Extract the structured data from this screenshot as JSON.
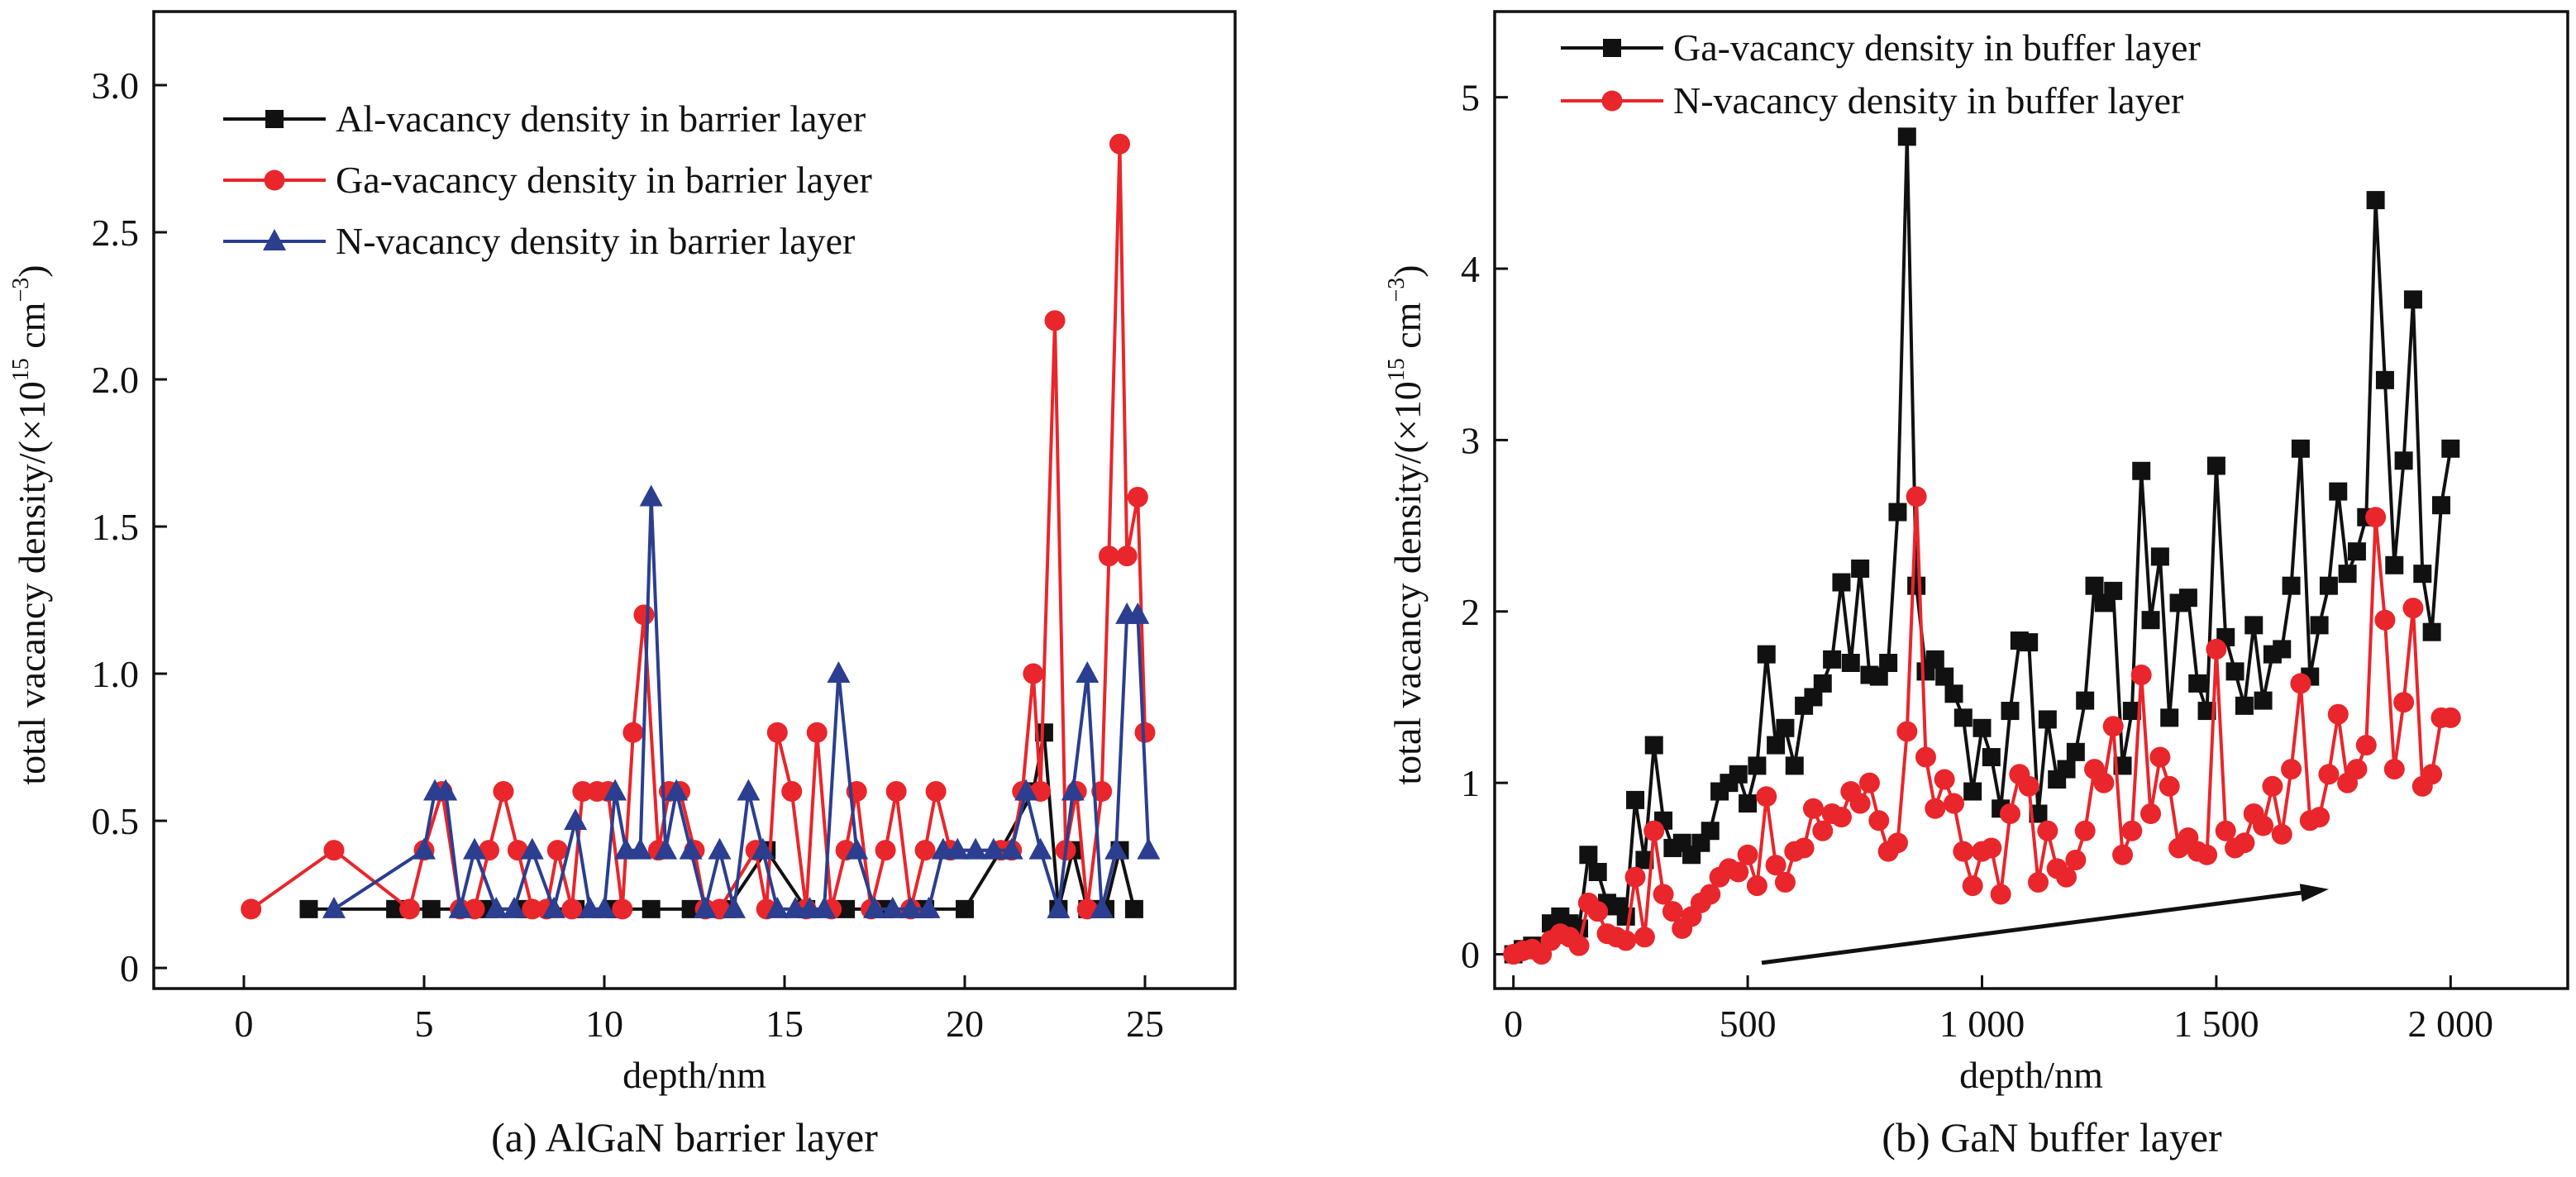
{
  "chart_data": [
    {
      "type": "line",
      "caption": "(a) AlGaN barrier layer",
      "xlabel": "depth/nm",
      "ylabel": "total vacancy density/(×10",
      "ylabel_exp": "15",
      "ylabel_unit": " cm",
      "ylabel_unit_exp": "−3",
      "ylabel_close": ")",
      "xlim": [
        -2.5,
        27.5
      ],
      "ylim": [
        -0.07,
        3.25
      ],
      "xticks": [
        0,
        5,
        10,
        15,
        20,
        25
      ],
      "xtick_labels": [
        "0",
        "5",
        "10",
        "15",
        "20",
        "25"
      ],
      "yticks": [
        0,
        0.5,
        1.0,
        1.5,
        2.0,
        2.5,
        3.0
      ],
      "ytick_labels": [
        "0",
        "0.5",
        "1.0",
        "1.5",
        "2.0",
        "2.5",
        "3.0"
      ],
      "legend_position": "top-left",
      "series": [
        {
          "name": "Al-vacancy density in barrier layer",
          "color": "#111111",
          "marker": "square",
          "x": [
            1.8,
            4.2,
            5.2,
            6.8,
            7.8,
            9.2,
            10.3,
            11.3,
            12.4,
            13.4,
            14.5,
            15.6,
            16.7,
            17.8,
            18.9,
            20.0,
            21.0,
            21.9,
            22.2,
            22.6,
            23.0,
            23.4,
            23.9,
            24.3,
            24.7
          ],
          "y": [
            0.2,
            0.2,
            0.2,
            0.2,
            0.2,
            0.2,
            0.2,
            0.2,
            0.2,
            0.2,
            0.4,
            0.2,
            0.2,
            0.2,
            0.2,
            0.2,
            0.4,
            0.6,
            0.8,
            0.2,
            0.4,
            0.2,
            0.2,
            0.4,
            0.2
          ]
        },
        {
          "name": "Ga-vacancy density in barrier layer",
          "color": "#e8262b",
          "marker": "circle",
          "x": [
            0.2,
            2.5,
            4.6,
            5.0,
            5.5,
            6.0,
            6.4,
            6.8,
            7.2,
            7.6,
            8.0,
            8.4,
            8.7,
            9.1,
            9.4,
            9.8,
            10.1,
            10.5,
            10.8,
            11.1,
            11.5,
            11.8,
            12.1,
            12.5,
            12.8,
            13.2,
            14.2,
            14.5,
            14.8,
            15.2,
            15.6,
            15.9,
            16.3,
            16.7,
            17.0,
            17.4,
            17.8,
            18.1,
            18.5,
            18.9,
            19.2,
            19.6,
            21.0,
            21.3,
            21.6,
            21.9,
            22.1,
            22.5,
            22.8,
            23.1,
            23.4,
            23.8,
            24.0,
            24.3,
            24.5,
            24.8,
            25.0
          ],
          "y": [
            0.2,
            0.4,
            0.2,
            0.4,
            0.6,
            0.2,
            0.2,
            0.4,
            0.6,
            0.4,
            0.2,
            0.2,
            0.4,
            0.2,
            0.6,
            0.6,
            0.6,
            0.2,
            0.8,
            1.2,
            0.4,
            0.6,
            0.6,
            0.4,
            0.2,
            0.2,
            0.4,
            0.2,
            0.8,
            0.6,
            0.2,
            0.8,
            0.2,
            0.4,
            0.6,
            0.2,
            0.4,
            0.6,
            0.2,
            0.4,
            0.6,
            0.4,
            0.4,
            0.4,
            0.6,
            1.0,
            0.6,
            2.2,
            0.4,
            0.6,
            0.2,
            0.6,
            1.4,
            2.8,
            1.4,
            1.6,
            0.8
          ]
        },
        {
          "name": "N-vacancy density in barrier layer",
          "color": "#2b3e8f",
          "marker": "triangle",
          "x": [
            2.5,
            5.0,
            5.3,
            5.6,
            6.0,
            6.4,
            7.0,
            7.5,
            8.0,
            8.6,
            9.2,
            9.6,
            10.0,
            10.3,
            10.6,
            11.0,
            11.3,
            11.7,
            12.0,
            12.4,
            12.8,
            13.2,
            13.6,
            14.0,
            14.4,
            14.8,
            15.3,
            15.7,
            16.1,
            16.5,
            17.0,
            17.5,
            18.0,
            18.5,
            19.0,
            19.4,
            19.8,
            20.3,
            20.8,
            21.3,
            21.7,
            22.1,
            22.6,
            23.0,
            23.4,
            23.8,
            24.2,
            24.5,
            24.8,
            25.1
          ],
          "y": [
            0.2,
            0.4,
            0.6,
            0.6,
            0.2,
            0.4,
            0.2,
            0.2,
            0.4,
            0.2,
            0.5,
            0.2,
            0.2,
            0.6,
            0.4,
            0.4,
            1.6,
            0.4,
            0.6,
            0.4,
            0.2,
            0.4,
            0.2,
            0.6,
            0.4,
            0.2,
            0.2,
            0.2,
            0.2,
            1.0,
            0.4,
            0.2,
            0.2,
            0.2,
            0.2,
            0.4,
            0.4,
            0.4,
            0.4,
            0.4,
            0.6,
            0.4,
            0.2,
            0.6,
            1.0,
            0.2,
            0.4,
            1.2,
            1.2,
            0.4
          ]
        }
      ]
    },
    {
      "type": "line",
      "caption": "(b) GaN buffer layer",
      "xlabel": "depth/nm",
      "ylabel": "total vacancy density/(×10",
      "ylabel_exp": "15",
      "ylabel_unit": " cm",
      "ylabel_unit_exp": "−3",
      "ylabel_close": ")",
      "xlim": [
        -40,
        2250
      ],
      "ylim": [
        -0.2,
        5.5
      ],
      "xticks": [
        0,
        500,
        1000,
        1500,
        2000
      ],
      "xtick_labels": [
        "0",
        "500",
        "1 000",
        "1 500",
        "2 000"
      ],
      "yticks": [
        0,
        1,
        2,
        3,
        4,
        5
      ],
      "ytick_labels": [
        "0",
        "1",
        "2",
        "3",
        "4",
        "5"
      ],
      "legend_position": "top-left",
      "trend_arrow": {
        "from": [
          530,
          -0.05
        ],
        "to": [
          1740,
          0.38
        ]
      },
      "series": [
        {
          "name": "Ga-vacancy density in buffer layer",
          "color": "#111111",
          "marker": "square",
          "x": [
            0,
            20,
            40,
            60,
            80,
            100,
            120,
            140,
            160,
            180,
            200,
            220,
            240,
            260,
            280,
            300,
            320,
            340,
            360,
            380,
            400,
            420,
            440,
            460,
            480,
            500,
            520,
            540,
            560,
            580,
            600,
            620,
            640,
            660,
            680,
            700,
            720,
            740,
            760,
            780,
            800,
            820,
            840,
            860,
            880,
            900,
            920,
            940,
            960,
            980,
            1000,
            1020,
            1040,
            1060,
            1080,
            1100,
            1120,
            1140,
            1160,
            1180,
            1200,
            1220,
            1240,
            1260,
            1280,
            1300,
            1320,
            1340,
            1360,
            1380,
            1400,
            1420,
            1440,
            1460,
            1480,
            1500,
            1520,
            1540,
            1560,
            1580,
            1600,
            1620,
            1640,
            1660,
            1680,
            1700,
            1720,
            1740,
            1760,
            1780,
            1800,
            1820,
            1840,
            1860,
            1880,
            1900,
            1920,
            1940,
            1960,
            1980,
            2000
          ],
          "y": [
            0.0,
            0.03,
            0.05,
            0.03,
            0.18,
            0.22,
            0.18,
            0.15,
            0.58,
            0.48,
            0.3,
            0.28,
            0.22,
            0.9,
            0.55,
            1.22,
            0.78,
            0.62,
            0.65,
            0.58,
            0.65,
            0.72,
            0.95,
            1.0,
            1.05,
            0.88,
            1.1,
            1.75,
            1.22,
            1.32,
            1.1,
            1.45,
            1.5,
            1.58,
            1.72,
            2.17,
            1.7,
            2.25,
            1.63,
            1.62,
            1.7,
            2.58,
            4.77,
            2.15,
            1.65,
            1.72,
            1.62,
            1.52,
            1.38,
            0.95,
            1.32,
            1.15,
            0.85,
            1.42,
            1.83,
            1.82,
            0.82,
            1.37,
            1.02,
            1.08,
            1.18,
            1.48,
            2.15,
            2.05,
            2.12,
            1.1,
            1.42,
            2.82,
            1.95,
            2.32,
            1.38,
            2.05,
            2.08,
            1.58,
            1.42,
            2.85,
            1.85,
            1.65,
            1.45,
            1.92,
            1.48,
            1.75,
            1.78,
            2.15,
            2.95,
            1.62,
            1.92,
            2.15,
            2.7,
            2.22,
            2.35,
            2.55,
            4.4,
            3.35,
            2.27,
            2.88,
            3.82,
            2.22,
            1.88,
            2.62,
            2.95
          ]
        },
        {
          "name": "N-vacancy density in buffer layer",
          "color": "#e8262b",
          "marker": "circle",
          "x": [
            0,
            20,
            40,
            60,
            80,
            100,
            120,
            140,
            160,
            180,
            200,
            220,
            240,
            260,
            280,
            300,
            320,
            340,
            360,
            380,
            400,
            420,
            440,
            460,
            480,
            500,
            520,
            540,
            560,
            580,
            600,
            620,
            640,
            660,
            680,
            700,
            720,
            740,
            760,
            780,
            800,
            820,
            840,
            860,
            880,
            900,
            920,
            940,
            960,
            980,
            1000,
            1020,
            1040,
            1060,
            1080,
            1100,
            1120,
            1140,
            1160,
            1180,
            1200,
            1220,
            1240,
            1260,
            1280,
            1300,
            1320,
            1340,
            1360,
            1380,
            1400,
            1420,
            1440,
            1460,
            1480,
            1500,
            1520,
            1540,
            1560,
            1580,
            1600,
            1620,
            1640,
            1660,
            1680,
            1700,
            1720,
            1740,
            1760,
            1780,
            1800,
            1820,
            1840,
            1860,
            1880,
            1900,
            1920,
            1940,
            1960,
            1980,
            2000
          ],
          "y": [
            0.0,
            0.02,
            0.03,
            0.0,
            0.08,
            0.12,
            0.1,
            0.05,
            0.3,
            0.25,
            0.12,
            0.1,
            0.08,
            0.45,
            0.1,
            0.72,
            0.35,
            0.25,
            0.15,
            0.22,
            0.3,
            0.35,
            0.45,
            0.5,
            0.48,
            0.58,
            0.4,
            0.92,
            0.52,
            0.42,
            0.6,
            0.62,
            0.85,
            0.72,
            0.82,
            0.8,
            0.95,
            0.88,
            1.0,
            0.78,
            0.6,
            0.65,
            1.3,
            2.67,
            1.15,
            0.85,
            1.02,
            0.88,
            0.6,
            0.4,
            0.6,
            0.62,
            0.35,
            0.82,
            1.05,
            0.98,
            0.42,
            0.72,
            0.5,
            0.45,
            0.55,
            0.72,
            1.08,
            1.0,
            1.33,
            0.58,
            0.72,
            1.63,
            0.82,
            1.15,
            0.98,
            0.62,
            0.68,
            0.6,
            0.58,
            1.78,
            0.72,
            0.62,
            0.65,
            0.82,
            0.75,
            0.98,
            0.7,
            1.08,
            1.58,
            0.78,
            0.8,
            1.05,
            1.4,
            1.0,
            1.08,
            1.22,
            2.55,
            1.95,
            1.08,
            1.47,
            2.02,
            0.98,
            1.05,
            1.38,
            1.38
          ]
        }
      ]
    }
  ]
}
